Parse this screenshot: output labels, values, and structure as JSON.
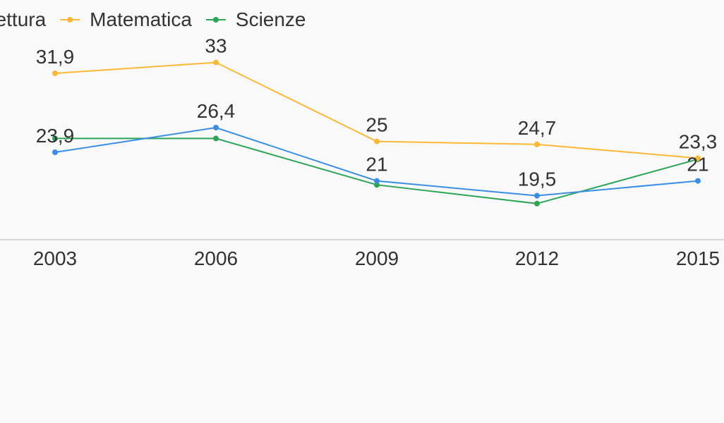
{
  "chart_data": {
    "type": "line",
    "title": "",
    "xlabel": "",
    "ylabel": "",
    "categories": [
      "2003",
      "2006",
      "2009",
      "2012",
      "2015"
    ],
    "ylim": [
      0,
      40
    ],
    "grid": false,
    "legend_position": "top",
    "series": [
      {
        "name": "Lettura",
        "color": "#3a8ee6",
        "values": [
          23.9,
          26.4,
          21,
          19.5,
          21
        ],
        "labels": [
          "23,9",
          "26,4",
          "21",
          "19,5",
          "21"
        ],
        "show_labels": true
      },
      {
        "name": "Matematica",
        "color": "#fbb836",
        "values": [
          31.9,
          33,
          25,
          24.7,
          23.3
        ],
        "labels": [
          "31,9",
          "33",
          "25",
          "24,7",
          "23,3"
        ],
        "show_labels": true
      },
      {
        "name": "Scienze",
        "color": "#2ea556",
        "values": [
          25.3,
          null,
          20.6,
          18.7,
          23.2
        ],
        "labels": [],
        "show_labels": false
      }
    ]
  }
}
